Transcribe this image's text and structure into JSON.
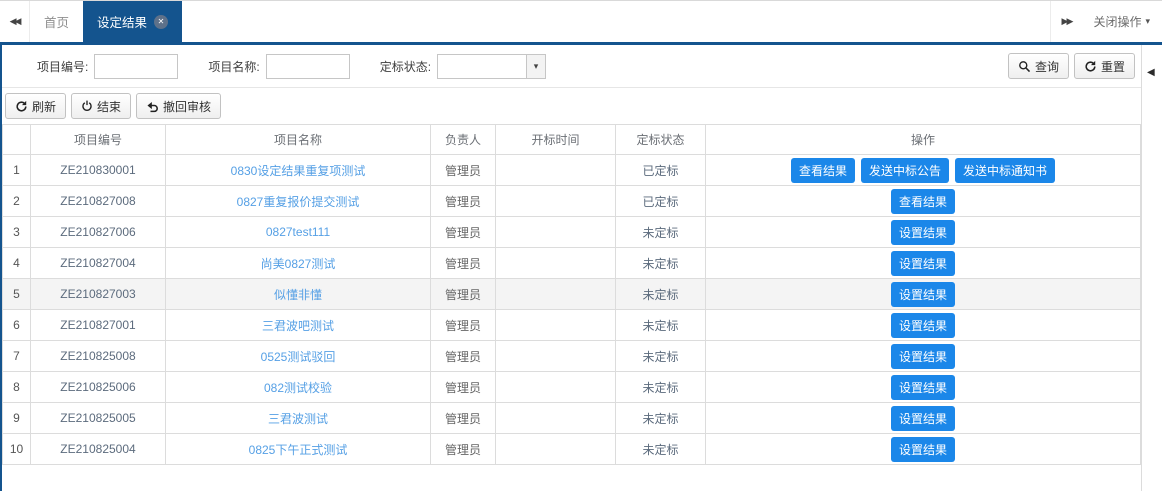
{
  "icons": {
    "scroll_left": "◀◀",
    "scroll_right": "▶▶",
    "caret_down": "▾",
    "close_tab": "✕",
    "collapse_panel": "◀"
  },
  "tab_bar": {
    "tabs": [
      {
        "label": "首页",
        "active": false,
        "closable": false
      },
      {
        "label": "设定结果",
        "active": true,
        "closable": true
      }
    ],
    "close_menu_label": "关闭操作"
  },
  "filters": {
    "fields": [
      {
        "label": "项目编号:",
        "type": "text",
        "value": "",
        "name": "project-code"
      },
      {
        "label": "项目名称:",
        "type": "text",
        "value": "",
        "name": "project-name"
      },
      {
        "label": "定标状态:",
        "type": "select",
        "value": "",
        "name": "award-status"
      }
    ],
    "search_button": "查询",
    "reset_button": "重置"
  },
  "toolbar": {
    "buttons": [
      {
        "label": "刷新",
        "icon": "refresh-icon"
      },
      {
        "label": "结束",
        "icon": "power-icon"
      },
      {
        "label": "撤回审核",
        "icon": "undo-icon"
      }
    ]
  },
  "table": {
    "columns": [
      "",
      "项目编号",
      "项目名称",
      "负责人",
      "开标时间",
      "定标状态",
      "操作"
    ],
    "rows": [
      {
        "num": "1",
        "code": "ZE210830001",
        "name": "0830设定结果重复项测试",
        "owner": "管理员",
        "open_time": "",
        "status": "已定标",
        "actions": [
          "查看结果",
          "发送中标公告",
          "发送中标通知书"
        ],
        "highlighted": false
      },
      {
        "num": "2",
        "code": "ZE210827008",
        "name": "0827重复报价提交测试",
        "owner": "管理员",
        "open_time": "",
        "status": "已定标",
        "actions": [
          "查看结果"
        ],
        "highlighted": false
      },
      {
        "num": "3",
        "code": "ZE210827006",
        "name": "0827test111",
        "owner": "管理员",
        "open_time": "",
        "status": "未定标",
        "actions": [
          "设置结果"
        ],
        "highlighted": false
      },
      {
        "num": "4",
        "code": "ZE210827004",
        "name": "尚美0827测试",
        "owner": "管理员",
        "open_time": "",
        "status": "未定标",
        "actions": [
          "设置结果"
        ],
        "highlighted": false
      },
      {
        "num": "5",
        "code": "ZE210827003",
        "name": "似懂非懂",
        "owner": "管理员",
        "open_time": "",
        "status": "未定标",
        "actions": [
          "设置结果"
        ],
        "highlighted": true
      },
      {
        "num": "6",
        "code": "ZE210827001",
        "name": "三君波吧测试",
        "owner": "管理员",
        "open_time": "",
        "status": "未定标",
        "actions": [
          "设置结果"
        ],
        "highlighted": false
      },
      {
        "num": "7",
        "code": "ZE210825008",
        "name": "0525测试驳回",
        "owner": "管理员",
        "open_time": "",
        "status": "未定标",
        "actions": [
          "设置结果"
        ],
        "highlighted": false
      },
      {
        "num": "8",
        "code": "ZE210825006",
        "name": "082测试校验",
        "owner": "管理员",
        "open_time": "",
        "status": "未定标",
        "actions": [
          "设置结果"
        ],
        "highlighted": false
      },
      {
        "num": "9",
        "code": "ZE210825005",
        "name": "三君波测试",
        "owner": "管理员",
        "open_time": "",
        "status": "未定标",
        "actions": [
          "设置结果"
        ],
        "highlighted": false
      },
      {
        "num": "10",
        "code": "ZE210825004",
        "name": "0825下午正式测试",
        "owner": "管理员",
        "open_time": "",
        "status": "未定标",
        "actions": [
          "设置结果"
        ],
        "highlighted": false
      }
    ]
  },
  "colors": {
    "tab_blue": "#14548E",
    "action_button_blue": "#1B87E9",
    "link_blue": "#56A0E5"
  }
}
